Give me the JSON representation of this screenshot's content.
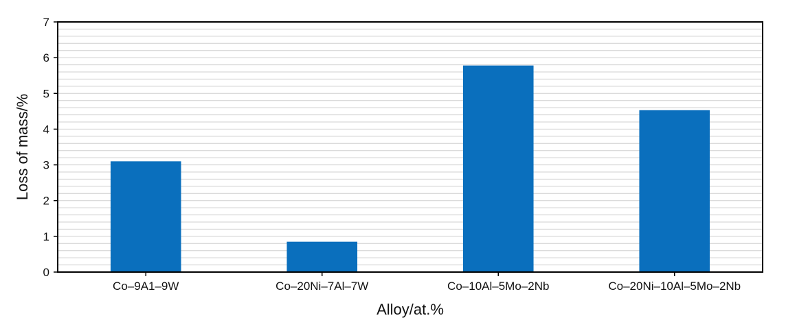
{
  "chart_data": {
    "type": "bar",
    "title": "",
    "xlabel": "Alloy/at.%",
    "ylabel": "Loss of mass/%",
    "categories": [
      "Co–9A1–9W",
      "Co–20Ni–7Al–7W",
      "Co–10Al–5Mo–2Nb",
      "Co–20Ni–10Al–5Mo–2Nb"
    ],
    "values": [
      3.1,
      0.85,
      5.78,
      4.53
    ],
    "ylim": [
      0,
      7
    ],
    "yticks": [
      "0",
      "1",
      "2",
      "3",
      "4",
      "5",
      "6",
      "7"
    ],
    "grid": true,
    "legend": "none",
    "colors": {
      "bar": "#0a6fbd",
      "grid": "#cfcfcf",
      "frame": "#000000",
      "plot_bg": "#ffffff"
    }
  }
}
